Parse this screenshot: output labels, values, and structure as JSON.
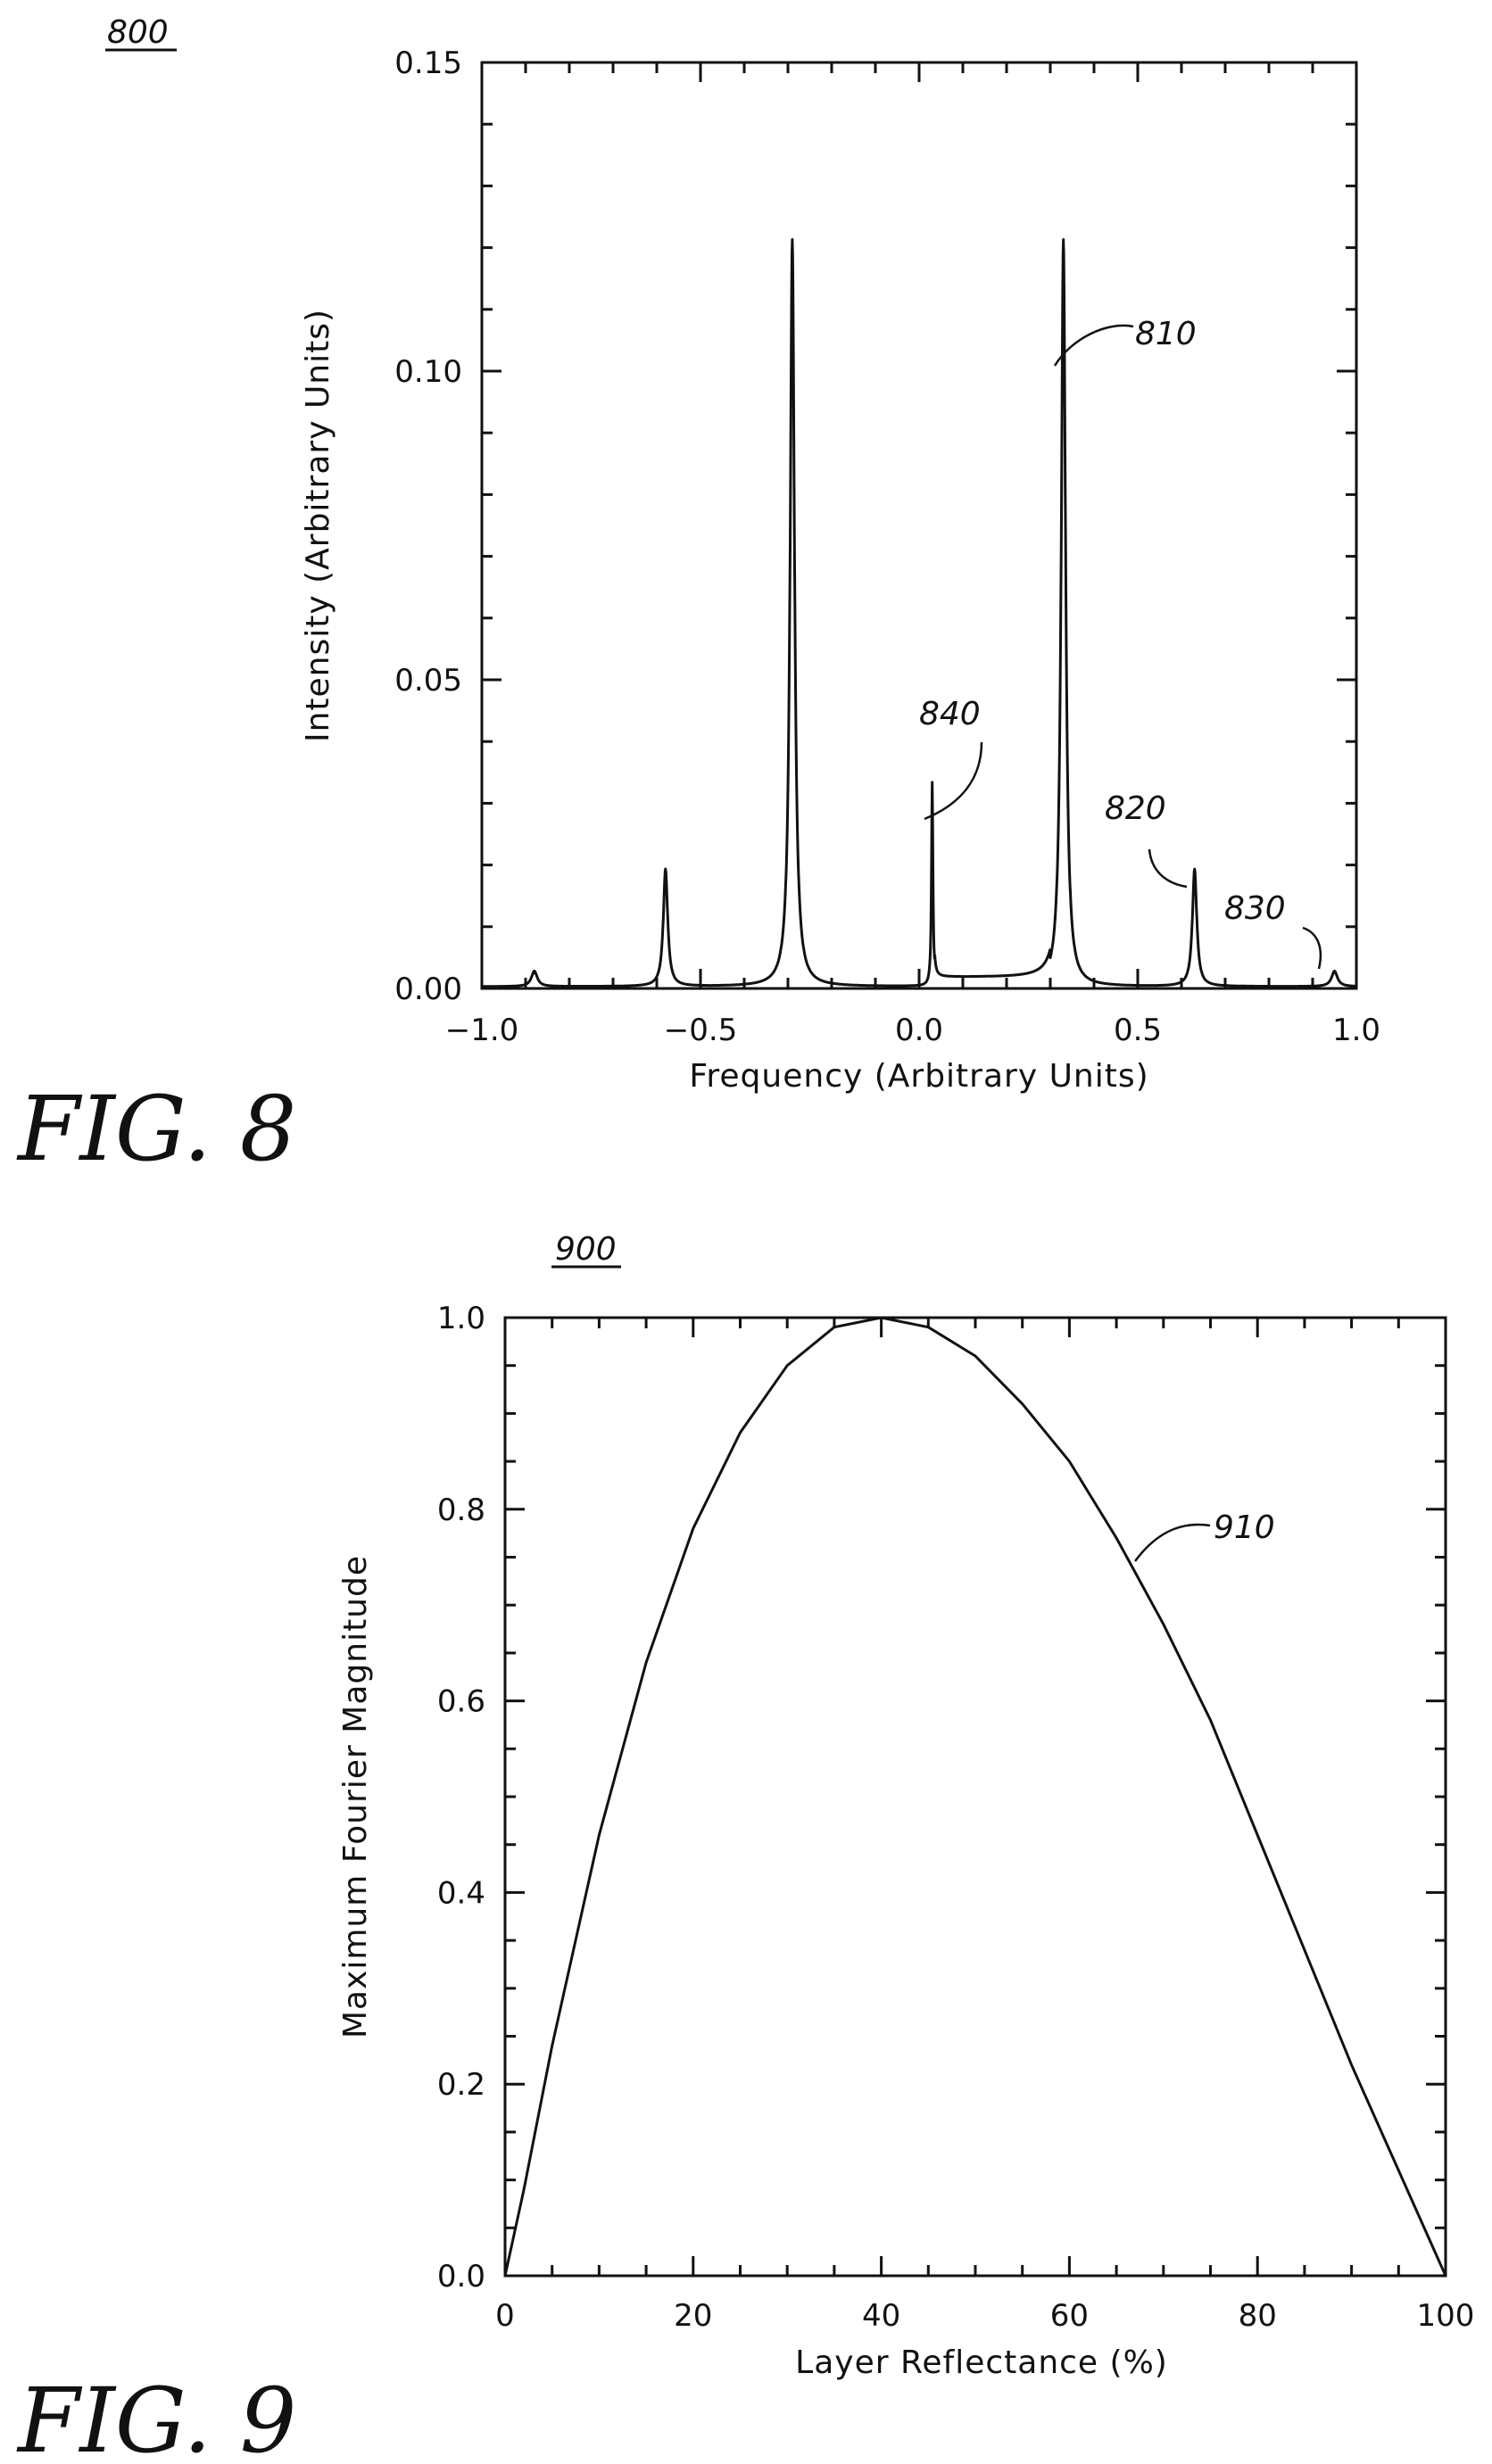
{
  "chart_data": [
    {
      "type": "line",
      "figure_label": "FIG. 8",
      "reference_number": "800",
      "xlabel": "Frequency (Arbitrary Units)",
      "ylabel": "Intensity (Arbitrary Units)",
      "xlim": [
        -1.0,
        1.0
      ],
      "ylim": [
        0.0,
        0.15
      ],
      "x_ticks": [
        -1.0,
        -0.5,
        0.0,
        0.5,
        1.0
      ],
      "x_tick_labels": [
        "−1.0",
        "−0.5",
        "0.0",
        "0.5",
        "1.0"
      ],
      "y_ticks": [
        0.0,
        0.05,
        0.1,
        0.15
      ],
      "y_tick_labels": [
        "0.00",
        "0.05",
        "0.10",
        "0.15"
      ],
      "series": [
        {
          "baseline": 0.0003,
          "plateau": {
            "x": [
              0.0,
              0.3
            ],
            "value": 0.0015
          },
          "peaks": [
            {
              "x": -0.88,
              "height": 0.0025,
              "width": 0.008
            },
            {
              "x": -0.58,
              "height": 0.019,
              "width": 0.006
            },
            {
              "x": -0.29,
              "height": 0.121,
              "width": 0.006
            },
            {
              "x": 0.03,
              "height": 0.033,
              "width": 0.002
            },
            {
              "x": 0.33,
              "height": 0.121,
              "width": 0.006
            },
            {
              "x": 0.63,
              "height": 0.019,
              "width": 0.006
            },
            {
              "x": 0.95,
              "height": 0.0025,
              "width": 0.008
            }
          ]
        }
      ],
      "annotations": [
        {
          "label": "810",
          "x": 0.33,
          "y": 0.101
        },
        {
          "label": "820",
          "x": 0.64,
          "y": 0.016
        },
        {
          "label": "830",
          "x": 0.96,
          "y": 0.002
        },
        {
          "label": "840",
          "x": 0.04,
          "y": 0.027
        }
      ]
    },
    {
      "type": "line",
      "figure_label": "FIG. 9",
      "reference_number": "900",
      "xlabel": "Layer Reflectance (%)",
      "ylabel": "Maximum Fourier Magnitude",
      "xlim": [
        0,
        100
      ],
      "ylim": [
        0.0,
        1.0
      ],
      "x_ticks": [
        0,
        20,
        40,
        60,
        80,
        100
      ],
      "x_tick_labels": [
        "0",
        "20",
        "40",
        "60",
        "80",
        "100"
      ],
      "y_ticks": [
        0.0,
        0.2,
        0.4,
        0.6,
        0.8,
        1.0
      ],
      "y_tick_labels": [
        "0.0",
        "0.2",
        "0.4",
        "0.6",
        "0.8",
        "1.0"
      ],
      "series": [
        {
          "x": [
            0,
            2,
            5,
            10,
            15,
            20,
            25,
            30,
            35,
            40,
            45,
            50,
            55,
            60,
            65,
            70,
            75,
            80,
            85,
            90,
            95,
            100
          ],
          "y": [
            0.0,
            0.09,
            0.24,
            0.46,
            0.64,
            0.78,
            0.88,
            0.95,
            0.99,
            1.0,
            0.99,
            0.96,
            0.91,
            0.85,
            0.77,
            0.68,
            0.58,
            0.46,
            0.34,
            0.22,
            0.11,
            0.0
          ]
        }
      ],
      "annotations": [
        {
          "label": "910",
          "x": 67,
          "y": 0.75
        }
      ]
    }
  ]
}
